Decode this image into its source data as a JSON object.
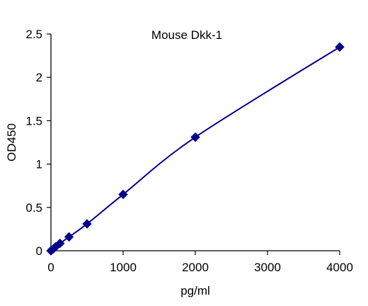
{
  "chart_data": {
    "type": "line",
    "title": "Mouse Dkk-1",
    "xlabel": "pg/ml",
    "ylabel": "OD450",
    "xlim": [
      0,
      4000
    ],
    "ylim": [
      0,
      2.5
    ],
    "x_ticks": [
      0,
      1000,
      2000,
      3000,
      4000
    ],
    "y_ticks": [
      0,
      0.5,
      1,
      1.5,
      2,
      2.5
    ],
    "x_tick_labels": [
      "0",
      "1000",
      "2000",
      "3000",
      "4000"
    ],
    "y_tick_labels": [
      "0",
      "0.5",
      "1",
      "1.5",
      "2",
      "2.5"
    ],
    "grid": false,
    "legend": "none",
    "series": [
      {
        "marker": "diamond",
        "color": "#00008B",
        "points": [
          {
            "x": 0,
            "y": 0.0
          },
          {
            "x": 31.25,
            "y": 0.02
          },
          {
            "x": 62.5,
            "y": 0.045
          },
          {
            "x": 125,
            "y": 0.085
          },
          {
            "x": 250,
            "y": 0.16
          },
          {
            "x": 500,
            "y": 0.31
          },
          {
            "x": 1000,
            "y": 0.65
          },
          {
            "x": 2000,
            "y": 1.31
          },
          {
            "x": 4000,
            "y": 2.35
          }
        ]
      }
    ]
  }
}
